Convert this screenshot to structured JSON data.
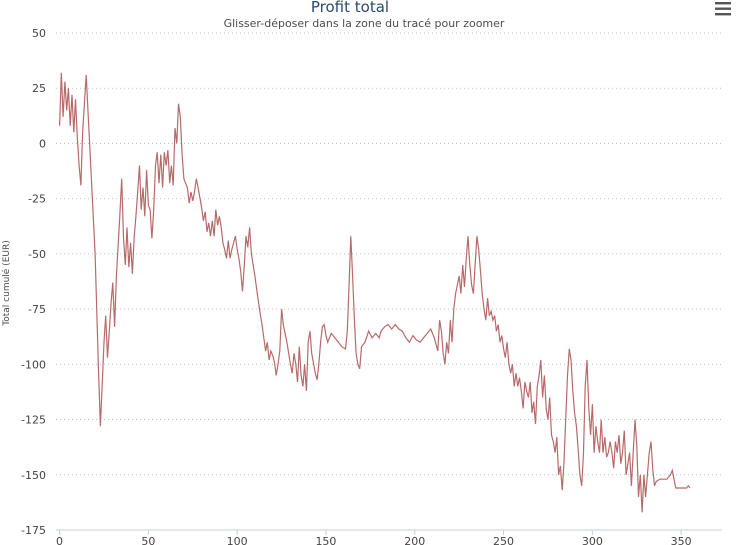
{
  "title": "Profit total",
  "subtitle": "Glisser-déposer dans la zone du tracé pour zoomer",
  "menu_icon": "hamburger-menu-icon",
  "chart_data": {
    "type": "line",
    "title": "Profit total",
    "subtitle": "Glisser-déposer dans la zone du tracé pour zoomer",
    "xlabel": "",
    "ylabel": "Total cumulé (EUR)",
    "xlim": [
      -2,
      373
    ],
    "ylim": [
      -175,
      50
    ],
    "x_ticks": [
      0,
      50,
      100,
      150,
      200,
      250,
      300,
      350
    ],
    "y_ticks": [
      50,
      25,
      0,
      -25,
      -50,
      -75,
      -100,
      -125,
      -150,
      -175
    ],
    "grid": true,
    "legend": "none",
    "series": [
      {
        "color": "#b86a6a",
        "points": [
          [
            0,
            8
          ],
          [
            1,
            32
          ],
          [
            2,
            12
          ],
          [
            3,
            28
          ],
          [
            4,
            15
          ],
          [
            5,
            25
          ],
          [
            6,
            8
          ],
          [
            7,
            22
          ],
          [
            8,
            5
          ],
          [
            9,
            20
          ],
          [
            10,
            3
          ],
          [
            11,
            -10
          ],
          [
            12,
            -19
          ],
          [
            13,
            5
          ],
          [
            15,
            31
          ],
          [
            20,
            -50
          ],
          [
            22,
            -104
          ],
          [
            23,
            -128
          ],
          [
            25,
            -90
          ],
          [
            26,
            -78
          ],
          [
            27,
            -97
          ],
          [
            28,
            -85
          ],
          [
            29,
            -72
          ],
          [
            30,
            -63
          ],
          [
            31,
            -83
          ],
          [
            32,
            -60
          ],
          [
            34,
            -32
          ],
          [
            35,
            -16
          ],
          [
            36,
            -43
          ],
          [
            37,
            -55
          ],
          [
            38,
            -38
          ],
          [
            39,
            -56
          ],
          [
            40,
            -45
          ],
          [
            41,
            -59
          ],
          [
            42,
            -43
          ],
          [
            43,
            -33
          ],
          [
            44,
            -22
          ],
          [
            45,
            -10
          ],
          [
            46,
            -30
          ],
          [
            47,
            -20
          ],
          [
            48,
            -33
          ],
          [
            49,
            -12
          ],
          [
            50,
            -28
          ],
          [
            51,
            -30
          ],
          [
            52,
            -43
          ],
          [
            53,
            -30
          ],
          [
            54,
            -10
          ],
          [
            55,
            -4
          ],
          [
            56,
            -18
          ],
          [
            57,
            -5
          ],
          [
            58,
            -20
          ],
          [
            59,
            -4
          ],
          [
            60,
            -10
          ],
          [
            61,
            -3
          ],
          [
            62,
            -18
          ],
          [
            63,
            -10
          ],
          [
            64,
            -19
          ],
          [
            65,
            7
          ],
          [
            66,
            0
          ],
          [
            67,
            18
          ],
          [
            68,
            12
          ],
          [
            69,
            -5
          ],
          [
            70,
            -16
          ],
          [
            72,
            -20
          ],
          [
            73,
            -27
          ],
          [
            74,
            -22
          ],
          [
            75,
            -26
          ],
          [
            76,
            -22
          ],
          [
            77,
            -16
          ],
          [
            78,
            -20
          ],
          [
            80,
            -29
          ],
          [
            81,
            -35
          ],
          [
            82,
            -31
          ],
          [
            83,
            -40
          ],
          [
            84,
            -36
          ],
          [
            85,
            -42
          ],
          [
            86,
            -35
          ],
          [
            87,
            -42
          ],
          [
            88,
            -30
          ],
          [
            89,
            -37
          ],
          [
            90,
            -33
          ],
          [
            91,
            -38
          ],
          [
            92,
            -45
          ],
          [
            93,
            -48
          ],
          [
            94,
            -52
          ],
          [
            95,
            -44
          ],
          [
            96,
            -52
          ],
          [
            97,
            -48
          ],
          [
            98,
            -45
          ],
          [
            99,
            -42
          ],
          [
            100,
            -48
          ],
          [
            101,
            -52
          ],
          [
            102,
            -58
          ],
          [
            103,
            -67
          ],
          [
            104,
            -55
          ],
          [
            105,
            -42
          ],
          [
            106,
            -47
          ],
          [
            107,
            -38
          ],
          [
            108,
            -50
          ],
          [
            110,
            -60
          ],
          [
            112,
            -72
          ],
          [
            114,
            -82
          ],
          [
            115,
            -88
          ],
          [
            116,
            -94
          ],
          [
            117,
            -90
          ],
          [
            118,
            -98
          ],
          [
            119,
            -94
          ],
          [
            120,
            -96
          ],
          [
            121,
            -99
          ],
          [
            122,
            -105
          ],
          [
            123,
            -100
          ],
          [
            124,
            -94
          ],
          [
            125,
            -75
          ],
          [
            126,
            -82
          ],
          [
            128,
            -90
          ],
          [
            130,
            -100
          ],
          [
            131,
            -104
          ],
          [
            132,
            -95
          ],
          [
            133,
            -100
          ],
          [
            134,
            -108
          ],
          [
            135,
            -92
          ],
          [
            136,
            -105
          ],
          [
            137,
            -110
          ],
          [
            138,
            -100
          ],
          [
            139,
            -112
          ],
          [
            140,
            -90
          ],
          [
            141,
            -85
          ],
          [
            142,
            -95
          ],
          [
            144,
            -104
          ],
          [
            145,
            -107
          ],
          [
            146,
            -100
          ],
          [
            147,
            -90
          ],
          [
            148,
            -83
          ],
          [
            149,
            -82
          ],
          [
            150,
            -87
          ],
          [
            151,
            -90
          ],
          [
            152,
            -88
          ],
          [
            153,
            -86
          ],
          [
            155,
            -88
          ],
          [
            157,
            -90
          ],
          [
            159,
            -92
          ],
          [
            161,
            -93
          ],
          [
            162,
            -85
          ],
          [
            163,
            -65
          ],
          [
            164,
            -42
          ],
          [
            165,
            -60
          ],
          [
            166,
            -80
          ],
          [
            167,
            -95
          ],
          [
            168,
            -100
          ],
          [
            169,
            -102
          ],
          [
            170,
            -92
          ],
          [
            172,
            -90
          ],
          [
            174,
            -85
          ],
          [
            176,
            -88
          ],
          [
            178,
            -86
          ],
          [
            180,
            -88
          ],
          [
            181,
            -85
          ],
          [
            183,
            -83
          ],
          [
            185,
            -82
          ],
          [
            187,
            -84
          ],
          [
            189,
            -82
          ],
          [
            191,
            -84
          ],
          [
            193,
            -85
          ],
          [
            195,
            -88
          ],
          [
            197,
            -90
          ],
          [
            199,
            -87
          ],
          [
            201,
            -89
          ],
          [
            203,
            -90
          ],
          [
            205,
            -88
          ],
          [
            207,
            -86
          ],
          [
            209,
            -84
          ],
          [
            211,
            -88
          ],
          [
            213,
            -94
          ],
          [
            214,
            -80
          ],
          [
            215,
            -85
          ],
          [
            216,
            -95
          ],
          [
            217,
            -100
          ],
          [
            218,
            -90
          ],
          [
            219,
            -95
          ],
          [
            220,
            -80
          ],
          [
            221,
            -90
          ],
          [
            222,
            -75
          ],
          [
            223,
            -68
          ],
          [
            225,
            -60
          ],
          [
            226,
            -68
          ],
          [
            227,
            -55
          ],
          [
            228,
            -65
          ],
          [
            229,
            -52
          ],
          [
            230,
            -42
          ],
          [
            231,
            -55
          ],
          [
            232,
            -64
          ],
          [
            233,
            -68
          ],
          [
            234,
            -55
          ],
          [
            235,
            -42
          ],
          [
            236,
            -48
          ],
          [
            237,
            -58
          ],
          [
            238,
            -68
          ],
          [
            239,
            -75
          ],
          [
            240,
            -80
          ],
          [
            241,
            -70
          ],
          [
            242,
            -78
          ],
          [
            243,
            -76
          ],
          [
            244,
            -80
          ],
          [
            245,
            -78
          ],
          [
            246,
            -85
          ],
          [
            247,
            -82
          ],
          [
            248,
            -90
          ],
          [
            249,
            -87
          ],
          [
            250,
            -93
          ],
          [
            251,
            -97
          ],
          [
            252,
            -90
          ],
          [
            253,
            -100
          ],
          [
            254,
            -104
          ],
          [
            255,
            -100
          ],
          [
            256,
            -110
          ],
          [
            257,
            -104
          ],
          [
            258,
            -110
          ],
          [
            259,
            -106
          ],
          [
            260,
            -112
          ],
          [
            261,
            -120
          ],
          [
            262,
            -108
          ],
          [
            263,
            -112
          ],
          [
            264,
            -115
          ],
          [
            265,
            -108
          ],
          [
            266,
            -122
          ],
          [
            267,
            -117
          ],
          [
            268,
            -127
          ],
          [
            269,
            -110
          ],
          [
            270,
            -105
          ],
          [
            271,
            -98
          ],
          [
            272,
            -115
          ],
          [
            273,
            -105
          ],
          [
            274,
            -120
          ],
          [
            275,
            -125
          ],
          [
            276,
            -115
          ],
          [
            277,
            -132
          ],
          [
            278,
            -135
          ],
          [
            279,
            -140
          ],
          [
            280,
            -133
          ],
          [
            281,
            -150
          ],
          [
            282,
            -146
          ],
          [
            283,
            -157
          ],
          [
            284,
            -145
          ],
          [
            285,
            -125
          ],
          [
            286,
            -105
          ],
          [
            287,
            -93
          ],
          [
            288,
            -98
          ],
          [
            289,
            -112
          ],
          [
            290,
            -122
          ],
          [
            291,
            -128
          ],
          [
            292,
            -138
          ],
          [
            293,
            -150
          ],
          [
            294,
            -155
          ],
          [
            295,
            -140
          ],
          [
            296,
            -110
          ],
          [
            297,
            -98
          ],
          [
            298,
            -120
          ],
          [
            299,
            -132
          ],
          [
            300,
            -118
          ],
          [
            301,
            -140
          ],
          [
            302,
            -128
          ],
          [
            303,
            -135
          ],
          [
            304,
            -140
          ],
          [
            305,
            -125
          ],
          [
            306,
            -140
          ],
          [
            307,
            -133
          ],
          [
            308,
            -142
          ],
          [
            309,
            -140
          ],
          [
            310,
            -135
          ],
          [
            311,
            -140
          ],
          [
            312,
            -147
          ],
          [
            313,
            -135
          ],
          [
            314,
            -140
          ],
          [
            315,
            -132
          ],
          [
            316,
            -145
          ],
          [
            317,
            -140
          ],
          [
            318,
            -130
          ],
          [
            319,
            -150
          ],
          [
            320,
            -145
          ],
          [
            321,
            -140
          ],
          [
            322,
            -155
          ],
          [
            323,
            -140
          ],
          [
            324,
            -125
          ],
          [
            325,
            -137
          ],
          [
            326,
            -160
          ],
          [
            327,
            -150
          ],
          [
            328,
            -167
          ],
          [
            329,
            -150
          ],
          [
            330,
            -160
          ],
          [
            331,
            -150
          ],
          [
            332,
            -140
          ],
          [
            333,
            -135
          ],
          [
            334,
            -147
          ],
          [
            335,
            -155
          ],
          [
            336,
            -153
          ],
          [
            338,
            -152
          ],
          [
            340,
            -152
          ],
          [
            342,
            -152
          ],
          [
            344,
            -150
          ],
          [
            345,
            -148
          ],
          [
            346,
            -152
          ],
          [
            347,
            -156
          ],
          [
            349,
            -156
          ],
          [
            351,
            -156
          ],
          [
            353,
            -156
          ],
          [
            354,
            -155
          ],
          [
            355,
            -156
          ]
        ]
      }
    ]
  }
}
